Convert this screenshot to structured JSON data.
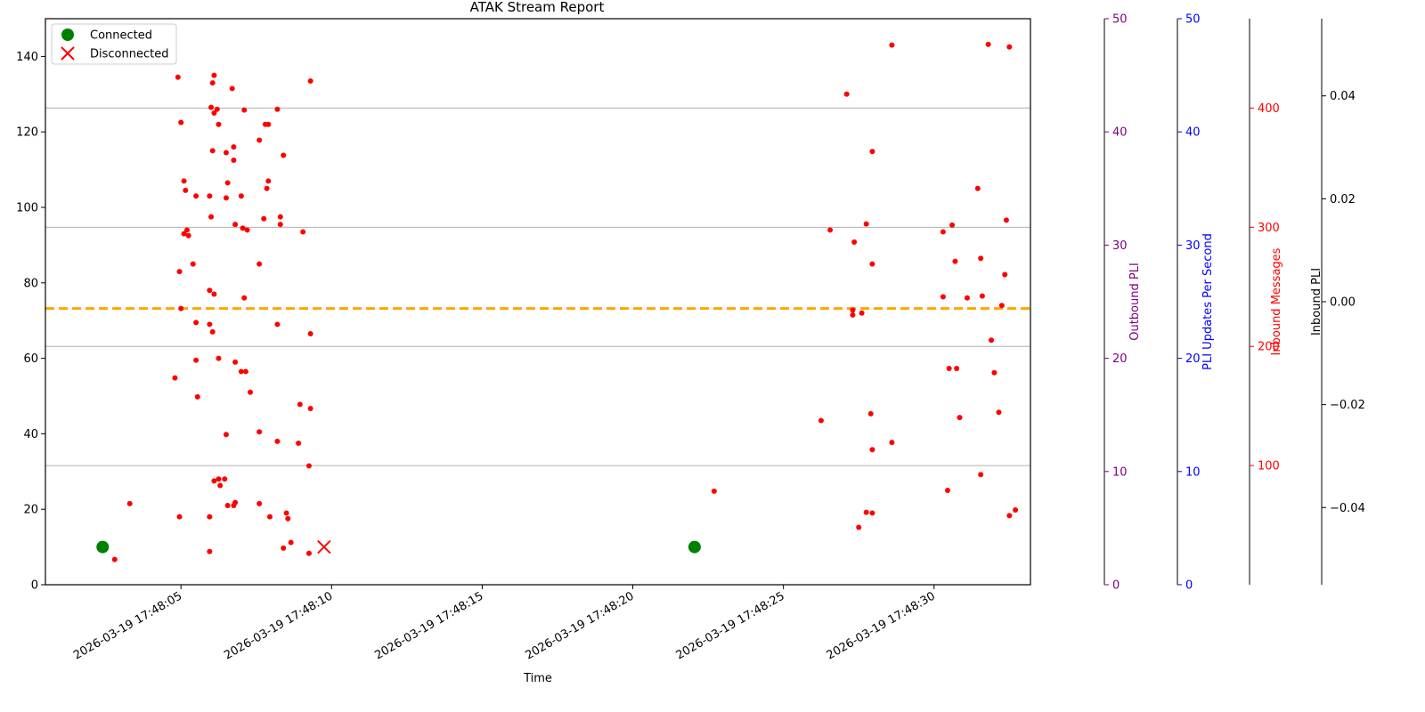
{
  "chart_data": {
    "type": "scatter",
    "title": "ATAK Stream Report",
    "xlabel": "Time",
    "x_ticks": [
      "2026-03-19 17:48:05",
      "2026-03-19 17:48:10",
      "2026-03-19 17:48:15",
      "2026-03-19 17:48:20",
      "2026-03-19 17:48:25",
      "2026-03-19 17:48:30"
    ],
    "x_tick_seconds": [
      5,
      10,
      15,
      20,
      25,
      30
    ],
    "xlim_seconds": [
      0.5,
      33.2
    ],
    "left_axis": {
      "label": "",
      "ylim": [
        0,
        150
      ],
      "ticks": [
        0,
        20,
        40,
        60,
        80,
        100,
        120,
        140
      ]
    },
    "right_axes": [
      {
        "label": "Outbound PLI",
        "color": "#800080",
        "ylim": [
          0,
          50
        ],
        "ticks": [
          0,
          10,
          20,
          30,
          40,
          50
        ],
        "tick_labels": [
          "0",
          "10",
          "20",
          "30",
          "40",
          "50"
        ]
      },
      {
        "label": "PLI Updates Per Second",
        "color": "#0000ff",
        "ylim": [
          0,
          50
        ],
        "ticks": [
          0,
          10,
          20,
          30,
          40,
          50
        ],
        "tick_labels": [
          "0",
          "10",
          "20",
          "30",
          "40",
          "50"
        ]
      },
      {
        "label": "Inbound Messages",
        "color": "#ff0000",
        "ylim": [
          0,
          475
        ],
        "ticks": [
          100,
          200,
          300,
          400
        ],
        "tick_labels": [
          "100",
          "200",
          "300",
          "400"
        ]
      },
      {
        "label": "Inbound PLI",
        "color": "#000000",
        "ylim": [
          -0.055,
          0.055
        ],
        "ticks": [
          -0.04,
          -0.02,
          0.0,
          0.02,
          0.04
        ],
        "tick_labels": [
          "−0.04",
          "−0.02",
          "0.00",
          "0.02",
          "0.04"
        ]
      }
    ],
    "grid": "horizontal lines on the Inbound Messages axis",
    "grid_values": [
      100,
      200,
      300,
      400
    ],
    "reference_line": {
      "value": 73.2,
      "color": "#ffa500",
      "style": "dashed"
    },
    "legend": {
      "placement": "top-left",
      "entries": [
        {
          "label": "Connected",
          "marker": "circle",
          "color": "#008000"
        },
        {
          "label": "Disconnected",
          "marker": "x",
          "color": "#ff0000"
        }
      ]
    },
    "series": [
      {
        "name": "Connected",
        "color": "#008000",
        "marker": "circle",
        "points": [
          [
            2.4,
            10
          ],
          [
            22.05,
            10
          ]
        ]
      },
      {
        "name": "Disconnected",
        "color": "#ff0000",
        "marker": "x",
        "points": [
          [
            9.75,
            10
          ]
        ]
      },
      {
        "color": "#ff0000",
        "marker": "dot",
        "points": [
          [
            2.8,
            6.7
          ],
          [
            3.3,
            21.5
          ],
          [
            4.8,
            54.8
          ],
          [
            4.9,
            134.5
          ],
          [
            5.0,
            122.5
          ],
          [
            4.95,
            83
          ],
          [
            5.0,
            73.2
          ],
          [
            5.1,
            107
          ],
          [
            5.15,
            104.5
          ],
          [
            5.2,
            94
          ],
          [
            5.1,
            93
          ],
          [
            5.25,
            92.5
          ],
          [
            5.4,
            85
          ],
          [
            4.95,
            18
          ],
          [
            5.5,
            103
          ],
          [
            5.5,
            69.5
          ],
          [
            5.5,
            59.5
          ],
          [
            5.55,
            49.8
          ],
          [
            6.0,
            126.5
          ],
          [
            6.1,
            135
          ],
          [
            6.05,
            133
          ],
          [
            6.1,
            125
          ],
          [
            6.2,
            126
          ],
          [
            6.25,
            122
          ],
          [
            6.05,
            115
          ],
          [
            5.95,
            103
          ],
          [
            6.0,
            97.5
          ],
          [
            5.95,
            78
          ],
          [
            6.1,
            77
          ],
          [
            5.95,
            69
          ],
          [
            6.05,
            67
          ],
          [
            6.25,
            60
          ],
          [
            6.1,
            27.5
          ],
          [
            6.25,
            28
          ],
          [
            6.3,
            26.3
          ],
          [
            6.45,
            28
          ],
          [
            5.95,
            18
          ],
          [
            5.95,
            8.8
          ],
          [
            6.5,
            114.5
          ],
          [
            6.55,
            106.5
          ],
          [
            6.5,
            102.5
          ],
          [
            6.5,
            39.8
          ],
          [
            6.55,
            21
          ],
          [
            6.7,
            131.5
          ],
          [
            6.75,
            116
          ],
          [
            6.75,
            112.5
          ],
          [
            6.8,
            95.5
          ],
          [
            6.8,
            59
          ],
          [
            6.75,
            21
          ],
          [
            6.8,
            21.8
          ],
          [
            7.0,
            103
          ],
          [
            7.05,
            94.5
          ],
          [
            7.1,
            76
          ],
          [
            7.0,
            56.5
          ],
          [
            7.15,
            56.5
          ],
          [
            7.3,
            51
          ],
          [
            7.1,
            125.8
          ],
          [
            7.2,
            94
          ],
          [
            7.6,
            117.8
          ],
          [
            7.8,
            122
          ],
          [
            7.9,
            122
          ],
          [
            7.75,
            97
          ],
          [
            7.9,
            107
          ],
          [
            7.85,
            105
          ],
          [
            7.6,
            85
          ],
          [
            7.6,
            40.5
          ],
          [
            7.6,
            21.5
          ],
          [
            7.95,
            18
          ],
          [
            8.2,
            126
          ],
          [
            8.3,
            97.5
          ],
          [
            8.3,
            95.5
          ],
          [
            8.2,
            69
          ],
          [
            8.2,
            38
          ],
          [
            8.4,
            113.8
          ],
          [
            8.5,
            19
          ],
          [
            8.55,
            17.5
          ],
          [
            8.4,
            9.7
          ],
          [
            8.65,
            11.2
          ],
          [
            8.95,
            47.8
          ],
          [
            8.9,
            37.5
          ],
          [
            9.05,
            93.5
          ],
          [
            9.3,
            66.5
          ],
          [
            9.3,
            46.7
          ],
          [
            9.25,
            31.5
          ],
          [
            9.25,
            8.3
          ],
          [
            9.3,
            133.5
          ],
          [
            22.7,
            24.8
          ],
          [
            26.25,
            43.5
          ],
          [
            26.55,
            94
          ],
          [
            27.1,
            130
          ],
          [
            27.35,
            90.8
          ],
          [
            27.3,
            72.8
          ],
          [
            27.3,
            71.5
          ],
          [
            27.5,
            15.2
          ],
          [
            27.6,
            72
          ],
          [
            27.75,
            95.6
          ],
          [
            27.75,
            19.2
          ],
          [
            27.95,
            114.8
          ],
          [
            27.95,
            85
          ],
          [
            27.9,
            45.3
          ],
          [
            27.95,
            35.8
          ],
          [
            27.95,
            19
          ],
          [
            28.6,
            143
          ],
          [
            28.6,
            37.7
          ],
          [
            30.3,
            93.5
          ],
          [
            30.3,
            76.3
          ],
          [
            30.45,
            25
          ],
          [
            30.5,
            57.3
          ],
          [
            30.6,
            95.3
          ],
          [
            30.7,
            85.7
          ],
          [
            30.75,
            57.3
          ],
          [
            30.85,
            44.3
          ],
          [
            31.1,
            76
          ],
          [
            31.45,
            105
          ],
          [
            31.55,
            86.5
          ],
          [
            31.6,
            76.5
          ],
          [
            31.55,
            29.2
          ],
          [
            31.8,
            143.2
          ],
          [
            31.9,
            64.8
          ],
          [
            32.0,
            56.2
          ],
          [
            32.15,
            45.7
          ],
          [
            32.25,
            74
          ],
          [
            32.35,
            82.2
          ],
          [
            32.4,
            96.6
          ],
          [
            32.5,
            142.5
          ],
          [
            32.5,
            18.3
          ],
          [
            32.7,
            19.8
          ]
        ]
      }
    ]
  }
}
